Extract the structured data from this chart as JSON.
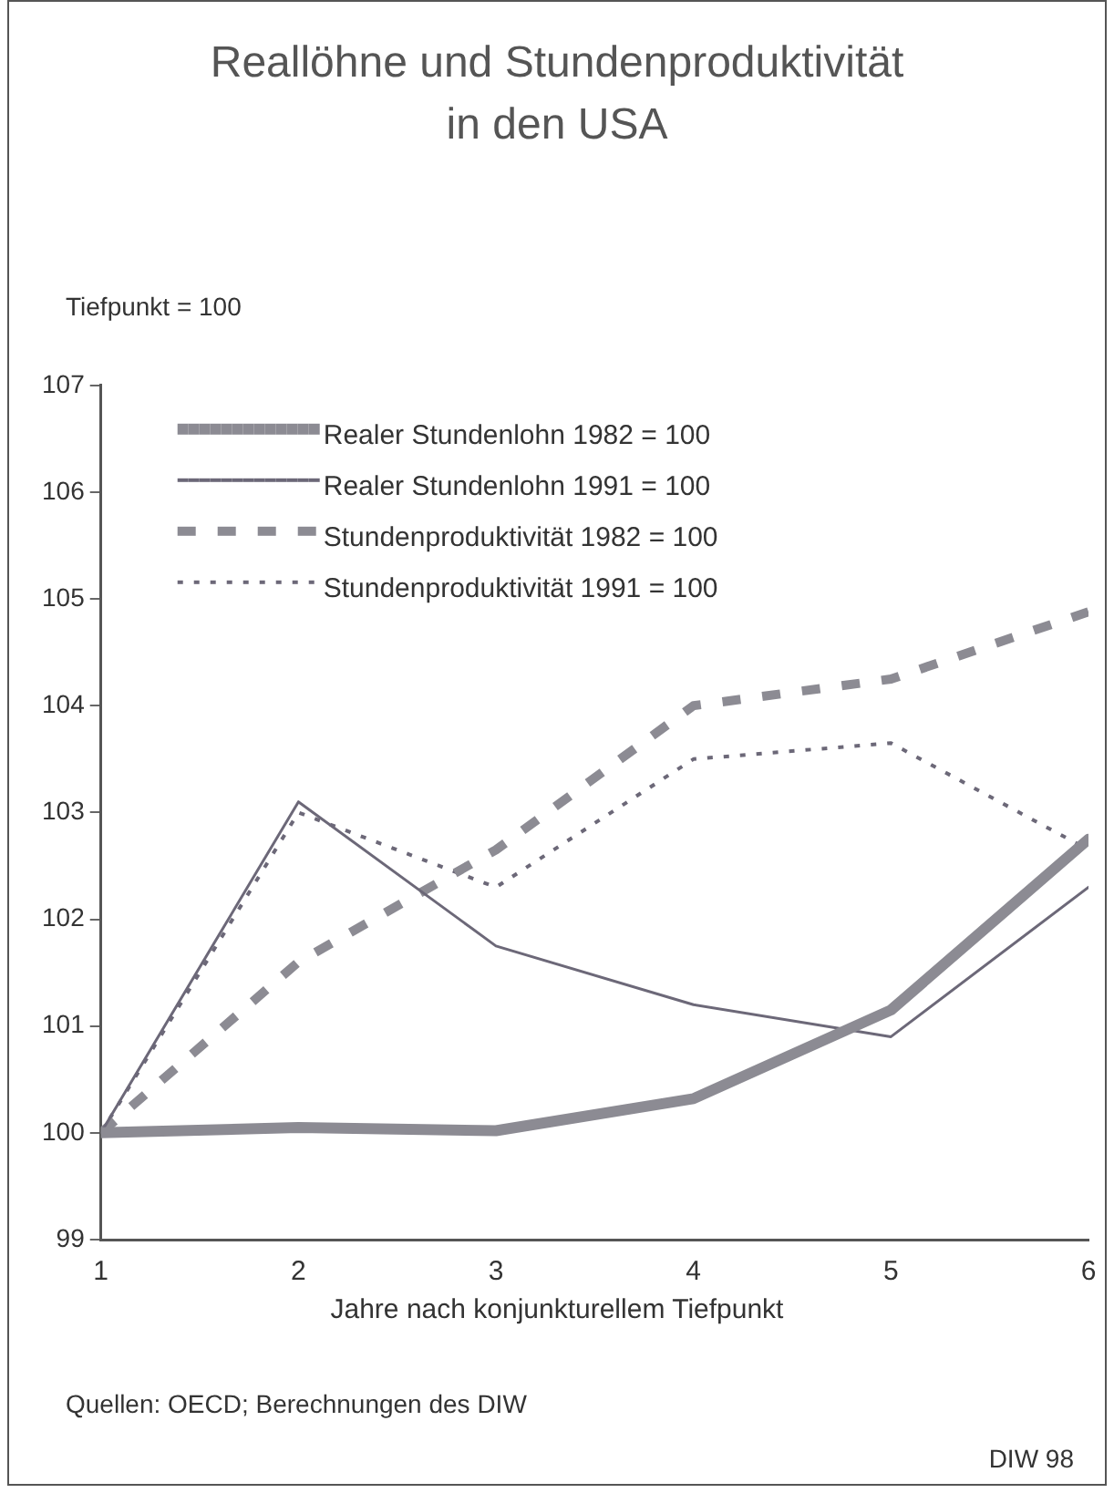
{
  "chart_data": {
    "type": "line",
    "title": "Reallöhne und Stundenproduktivität in den USA",
    "ylabel": "Tiefpunkt = 100",
    "xlabel": "Jahre nach konjunkturellem Tiefpunkt",
    "x": [
      1,
      2,
      3,
      4,
      5,
      6
    ],
    "xlim": [
      1,
      6
    ],
    "xticks": [
      1,
      2,
      3,
      4,
      5,
      6
    ],
    "ylim": [
      99,
      107
    ],
    "yticks": [
      99,
      100,
      101,
      102,
      103,
      104,
      105,
      106,
      107
    ],
    "grid": false,
    "legend": "top left",
    "marker": "none",
    "series": [
      {
        "name": "Realer Stundenlohn 1982 = 100",
        "color": "#8c8b93",
        "line_style": "solid",
        "values": [
          100,
          100.05,
          100.02,
          100.32,
          101.15,
          102.75
        ]
      },
      {
        "name": "Realer Stundenlohn 1991 = 100",
        "color": "#6c6878",
        "line_style": "solid",
        "values": [
          100,
          103.1,
          101.75,
          101.2,
          100.9,
          102.3
        ]
      },
      {
        "name": "Stundenproduktivität 1982 = 100",
        "color": "#8c8b93",
        "line_style": "dashed",
        "values": [
          100,
          101.6,
          102.65,
          104.0,
          104.25,
          104.88
        ]
      },
      {
        "name": "Stundenproduktivität 1991 = 100",
        "color": "#6c6878",
        "line_style": "dotted",
        "values": [
          100,
          103.0,
          102.3,
          103.5,
          103.65,
          102.65
        ]
      }
    ],
    "annotations": [
      "Quellen: OECD; Berechnungen des DIW",
      "DIW 98"
    ]
  }
}
